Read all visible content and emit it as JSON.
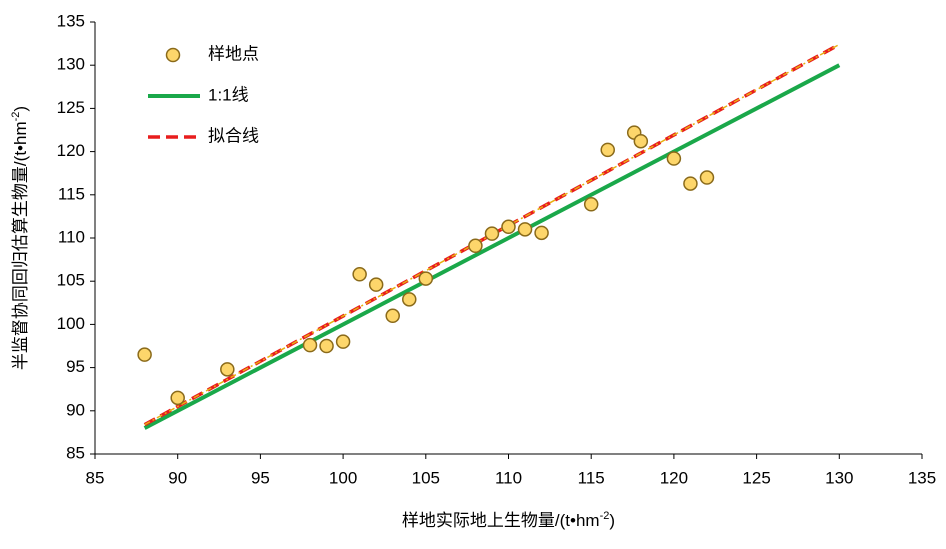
{
  "chart_data": {
    "type": "scatter",
    "xlabel": {
      "text": "样地实际地上生物量/(t•hm",
      "sup": "-2",
      "tail": ")"
    },
    "ylabel": {
      "text": "半监督协同回归估算生物量/(t•hm",
      "sup": "-2",
      "tail": ")"
    },
    "xlim": [
      85,
      135
    ],
    "xticks": [
      85,
      90,
      95,
      100,
      105,
      110,
      115,
      120,
      125,
      130,
      135
    ],
    "ylim": [
      85,
      135
    ],
    "yticks": [
      85,
      90,
      95,
      100,
      105,
      110,
      115,
      120,
      125,
      130,
      135
    ],
    "grid": false,
    "legend": "upper left",
    "series": [
      {
        "name": "样地点",
        "kind": "scatter",
        "color": "#fdd66b",
        "edge": "#8a6a1a",
        "x": [
          88,
          90,
          93,
          98,
          99,
          100,
          101,
          102,
          103,
          104,
          105,
          108,
          109,
          110,
          111,
          112,
          115,
          116,
          117.6,
          118,
          120,
          121,
          122
        ],
        "values": [
          96.5,
          91.5,
          94.8,
          97.6,
          97.5,
          98,
          105.8,
          104.6,
          101,
          102.9,
          105.3,
          109.1,
          110.5,
          111.3,
          111,
          110.6,
          113.9,
          120.2,
          122.2,
          121.2,
          119.2,
          116.3,
          117
        ]
      },
      {
        "name": "1:1线",
        "kind": "line",
        "color": "#1aa84a",
        "x": [
          88,
          130
        ],
        "values": [
          88,
          130
        ]
      },
      {
        "name": "拟合线",
        "kind": "dashed",
        "color": "#e81d1d",
        "overlay_color": "#e8b010",
        "x": [
          88,
          130
        ],
        "values": [
          88.4,
          132.4
        ]
      }
    ]
  }
}
